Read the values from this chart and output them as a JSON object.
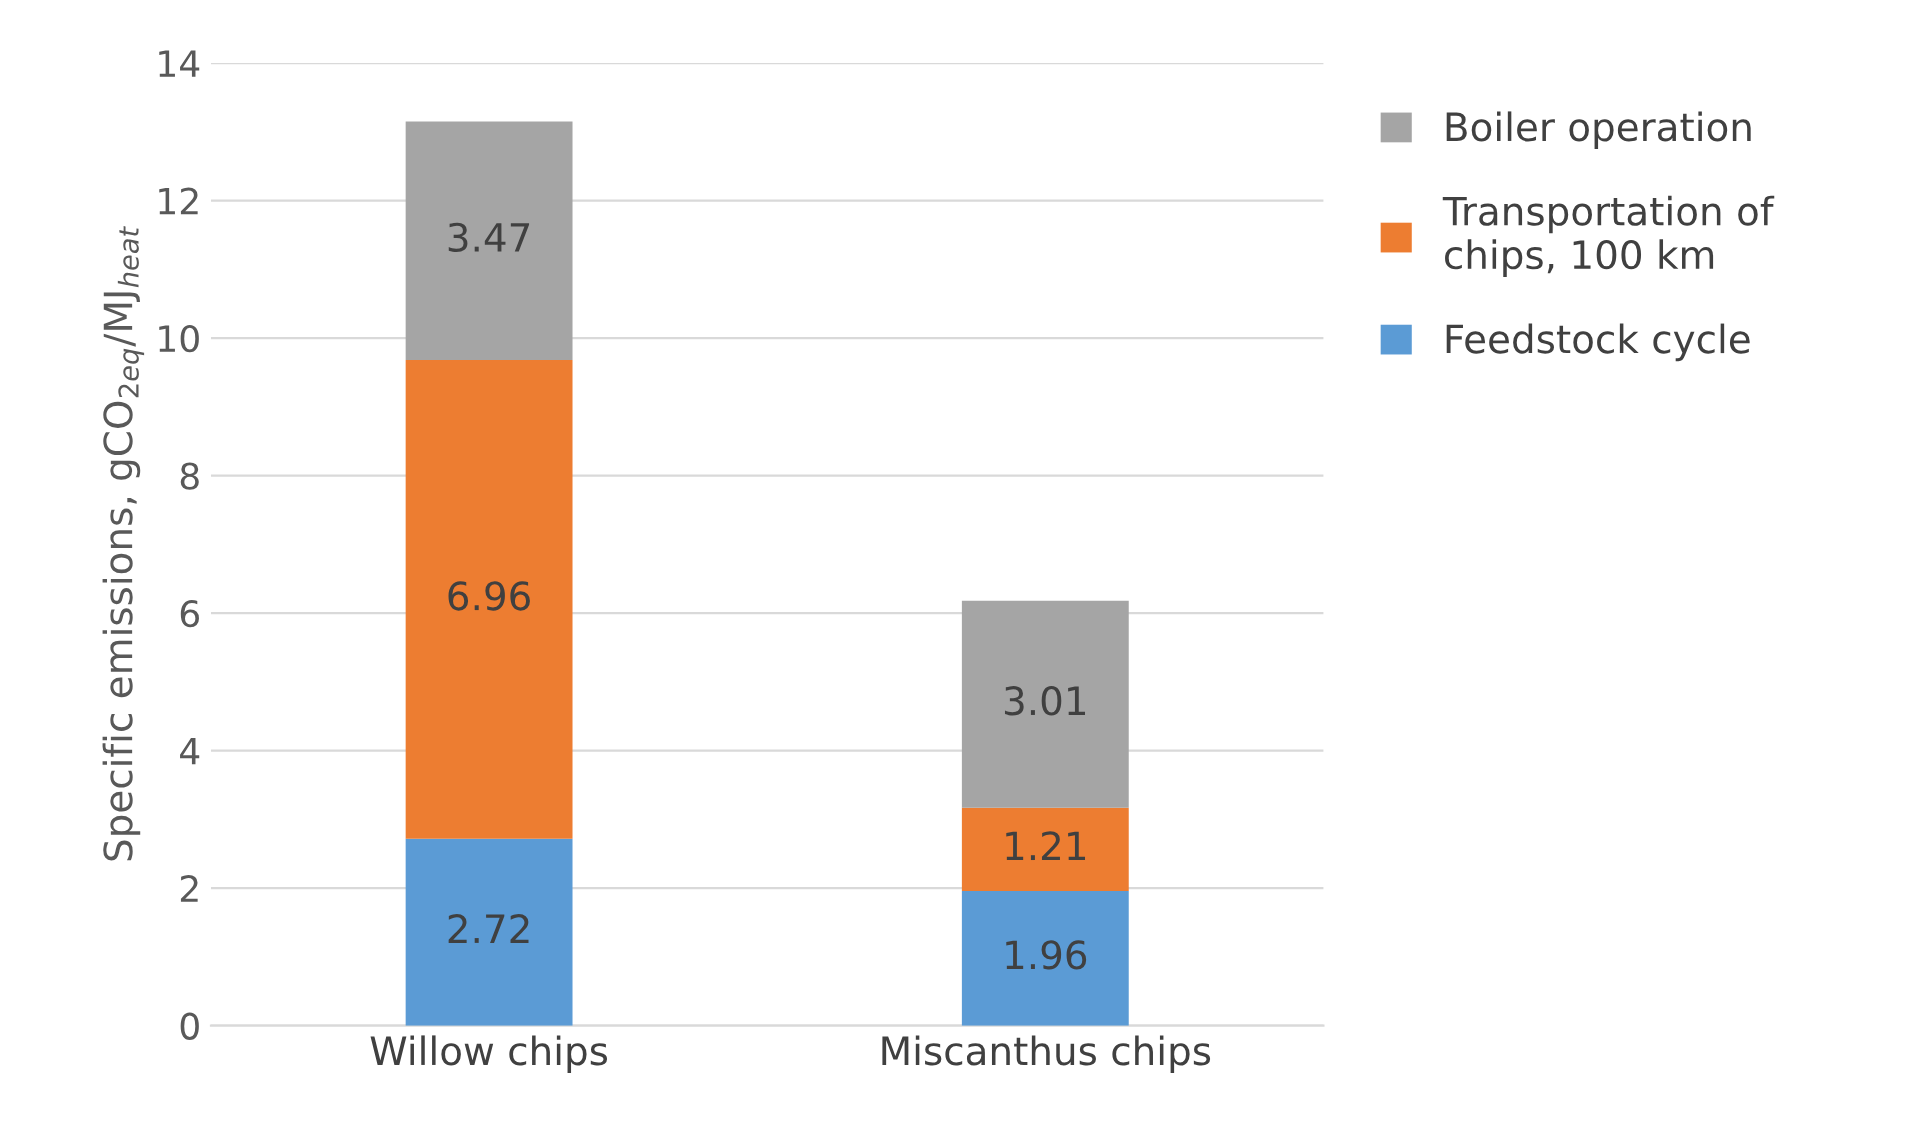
{
  "chart_data": {
    "type": "bar",
    "stacked": true,
    "categories": [
      "Willow chips",
      "Miscanthus chips"
    ],
    "series": [
      {
        "name": "Feedstock cycle",
        "color": "#5b9bd5",
        "values": [
          2.72,
          1.96
        ]
      },
      {
        "name": "Transportation of chips, 100 km",
        "color": "#ed7d31",
        "values": [
          6.96,
          1.21
        ]
      },
      {
        "name": "Boiler operation",
        "color": "#a5a5a5",
        "values": [
          3.47,
          3.01
        ]
      }
    ],
    "ylabel": "Specific emissions, gCO$_{2eq}$/MJ$_{heat}$",
    "ylim": [
      0,
      14
    ],
    "yticks": [
      0,
      2,
      4,
      6,
      8,
      10,
      12,
      14
    ],
    "grid": "y",
    "legend": "right",
    "data_labels": true
  }
}
